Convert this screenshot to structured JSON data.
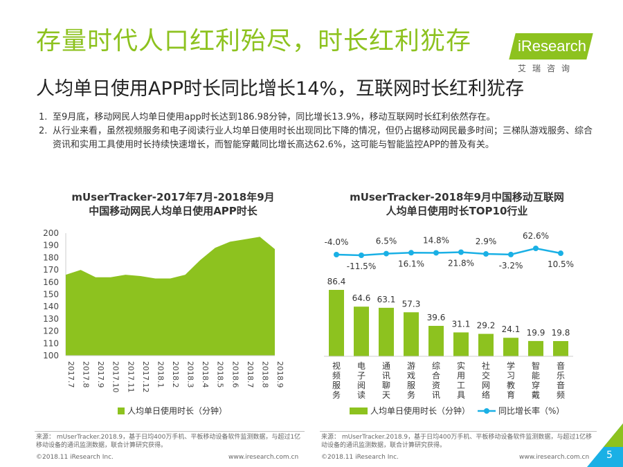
{
  "header": {
    "title": "存量时代人口红利殆尽，时长红利犹存",
    "subtitle": "人均单日使用APP时长同比增长14%，互联网时长红利犹存"
  },
  "logo": {
    "word": "iResearch",
    "cn": "艾瑞咨询"
  },
  "points": [
    {
      "num": "1.",
      "text": "至9月底，移动网民人均单日使用app时长达到186.98分钟，同比增长13.9%，移动互联网时长红利依然存在。"
    },
    {
      "num": "2.",
      "text": "从行业来看，虽然视频服务和电子阅读行业人均单日使用时长出现同比下降的情况，但仍占据移动网民最多时间；三梯队游戏服务、综合资讯和实用工具使用时长持续快速增长，而智能穿戴同比增长高达62.6%，这可能与智能监控APP的普及有关。"
    }
  ],
  "chart_data": [
    {
      "type": "area",
      "title_line1": "mUserTracker-2017年7月-2018年9月",
      "title_line2": "中国移动网民人均单日使用APP时长",
      "categories": [
        "2017.7",
        "2017.8",
        "2017.9",
        "2017.10",
        "2017.11",
        "2017.12",
        "2018.1",
        "2018.2",
        "2018.3",
        "2018.4",
        "2018.5",
        "2018.6",
        "2018.7",
        "2018.8",
        "2018.9"
      ],
      "series": [
        {
          "name": "人均单日使用时长（分钟）",
          "values": [
            166,
            170,
            164,
            164,
            166,
            165,
            163,
            163,
            166,
            178,
            188,
            193,
            195,
            197,
            187
          ]
        }
      ],
      "ylim": [
        100,
        200
      ],
      "yticks": [
        100,
        110,
        120,
        130,
        140,
        150,
        160,
        170,
        180,
        190,
        200
      ],
      "color": "#8dc21f",
      "legend": "bottom"
    },
    {
      "type": "bar+line",
      "title_line1": "mUserTracker-2018年9月中国移动互联网",
      "title_line2": "人均单日使用时长TOP10行业",
      "categories": [
        "视频服务",
        "电子阅读",
        "通讯聊天",
        "游戏服务",
        "综合资讯",
        "实用工具",
        "社交网络",
        "学习教育",
        "智能穿戴",
        "音乐音频"
      ],
      "series": [
        {
          "name": "人均单日使用时长（分钟）",
          "type": "bar",
          "values": [
            86.4,
            64.6,
            63.1,
            57.3,
            39.6,
            31.1,
            29.2,
            24.1,
            19.9,
            19.8
          ],
          "labels": [
            "86.4",
            "64.6",
            "63.1",
            "57.3",
            "39.6",
            "31.1",
            "29.2",
            "24.1",
            "19.9",
            "19.8"
          ]
        },
        {
          "name": "同比增长率（%）",
          "type": "line",
          "values": [
            -4.0,
            -11.5,
            6.5,
            16.1,
            14.8,
            21.8,
            2.9,
            -3.2,
            62.6,
            10.5
          ],
          "labels": [
            "-4.0%",
            "-11.5%",
            "6.5%",
            "16.1%",
            "14.8%",
            "21.8%",
            "2.9%",
            "-3.2%",
            "62.6%",
            "10.5%"
          ]
        }
      ],
      "bar_color": "#8dc21f",
      "line_color": "#1ab0e5",
      "legend": "bottom"
    }
  ],
  "footer": {
    "source_left": "来源： mUserTracker.2018.9，基于日均400万手机、平板移动设备软件监测数据，与超过1亿移动设备的通讯监测数据，联合计算研究获得。",
    "source_right": "来源： mUserTracker.2018.9，基于日均400万手机、平板移动设备软件监测数据，与超过1亿移动设备的通讯监测数据，联合计算研究获得。",
    "copyright_left": "©2018.11 iResearch Inc.",
    "url_left": "www.iresearch.com.cn",
    "copyright_right": "©2018.11 iResearch Inc.",
    "url_right": "www.iresearch.com.cn",
    "page": "5"
  }
}
